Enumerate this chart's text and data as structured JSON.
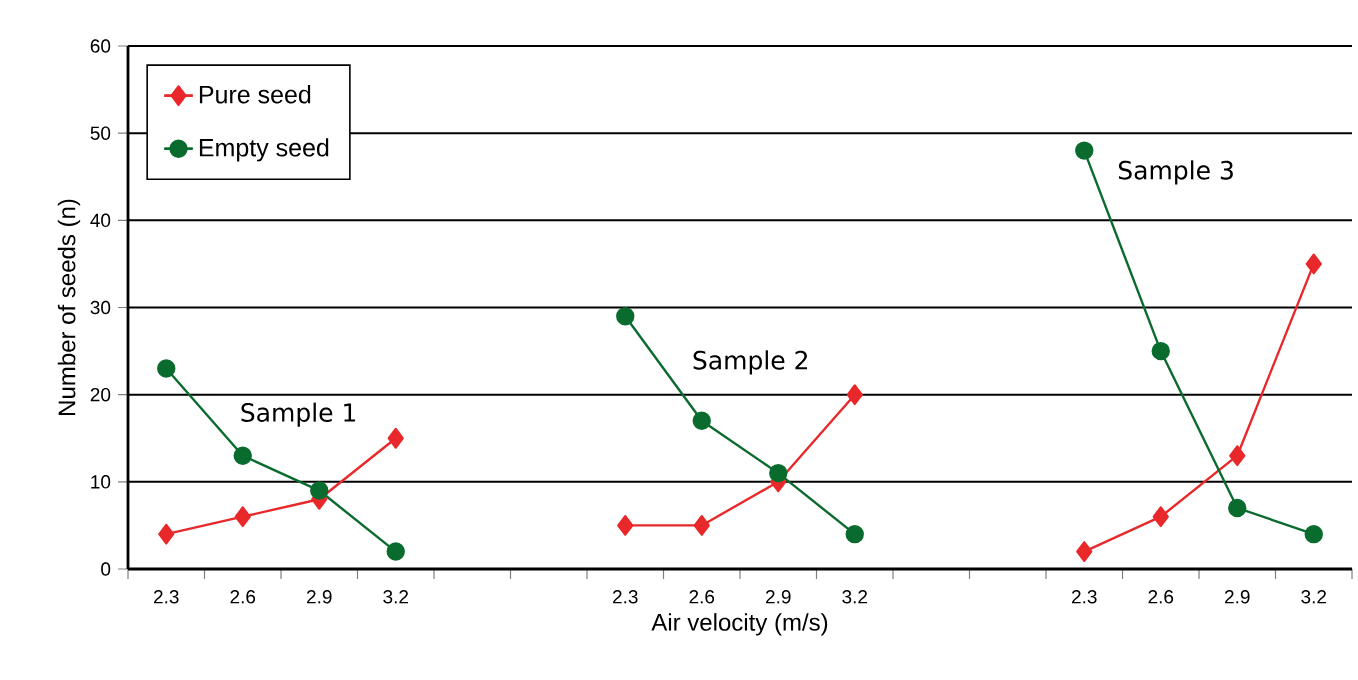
{
  "chart_data": {
    "type": "line",
    "xlabel": "Air velocity (m/s)",
    "ylabel": "Number of seeds (n)",
    "categories": [
      "2.3",
      "2.6",
      "2.9",
      "3.2",
      null,
      null,
      "2.3",
      "2.6",
      "2.9",
      "3.2",
      null,
      null,
      "2.3",
      "2.6",
      "2.9",
      "3.2"
    ],
    "series": [
      {
        "name": "Pure seed",
        "color": "#e8282a",
        "marker": "diamond",
        "values": [
          4,
          6,
          8,
          15,
          null,
          null,
          5,
          5,
          10,
          20,
          null,
          null,
          2,
          6,
          13,
          35
        ]
      },
      {
        "name": "Empty seed",
        "color": "#0a6b2e",
        "marker": "circle",
        "values": [
          23,
          13,
          9,
          2,
          null,
          null,
          29,
          17,
          11,
          4,
          null,
          null,
          48,
          25,
          7,
          4
        ]
      }
    ],
    "ylim": [
      0,
      60
    ],
    "yticks": [
      0,
      10,
      20,
      30,
      40,
      50,
      60
    ],
    "grid": "y",
    "legend": "top left",
    "annotations": [
      "Sample 1",
      "Sample 2",
      "Sample 3"
    ]
  }
}
